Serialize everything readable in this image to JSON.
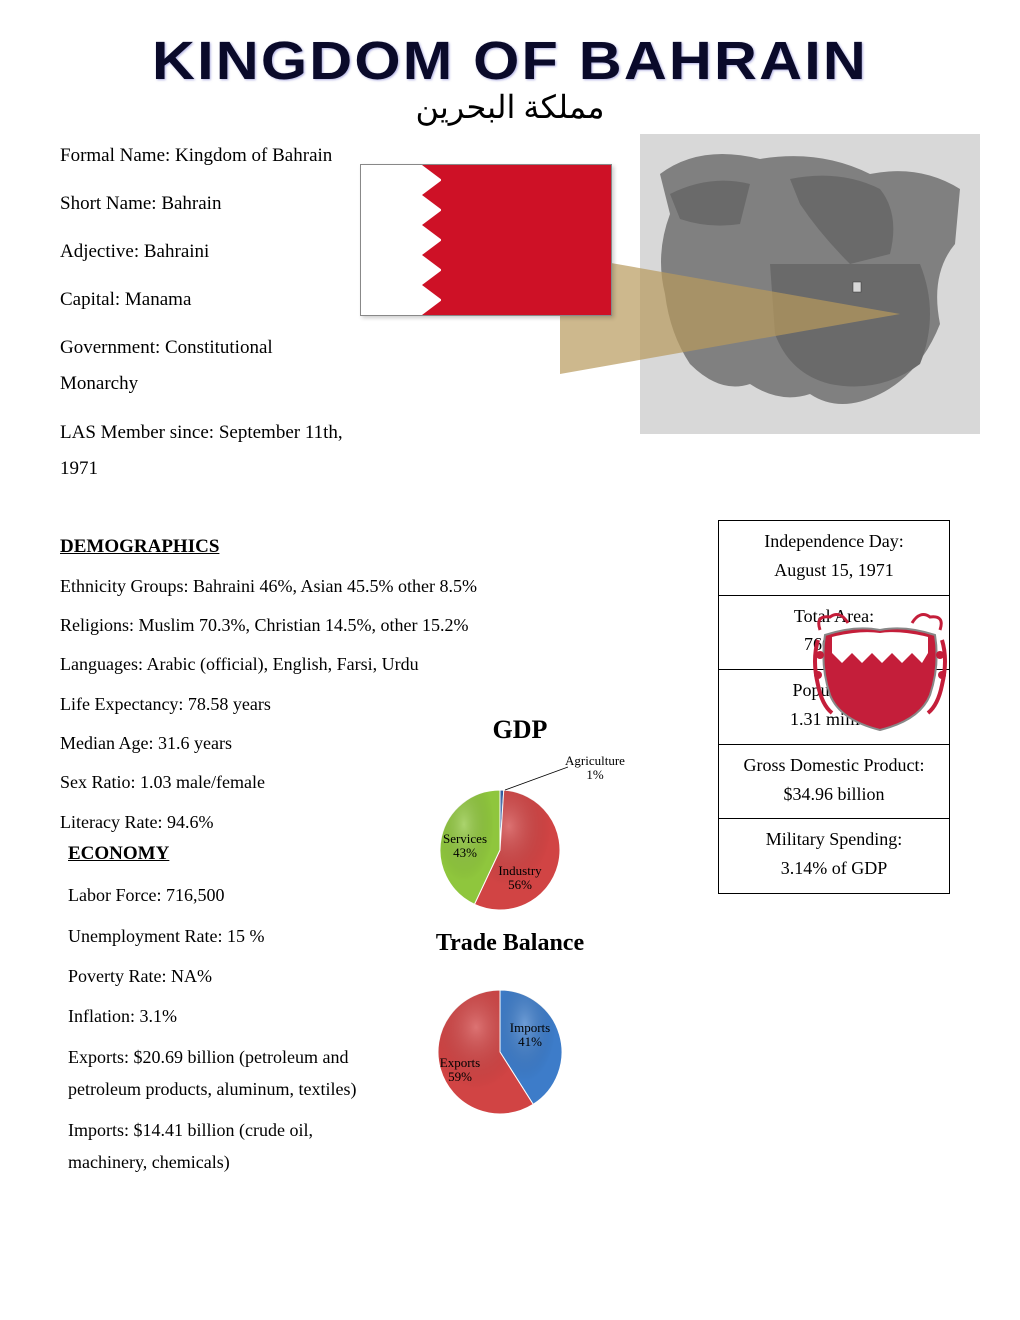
{
  "title": "KINGDOM OF BAHRAIN",
  "subtitle_ar": "مملكة البحرين",
  "facts": {
    "formal": "Formal Name: Kingdom of Bahrain",
    "short": "Short Name: Bahrain",
    "adjective": "Adjective: Bahraini",
    "capital": "Capital: Manama",
    "government": "Government: Constitutional Monarchy",
    "las": "LAS Member since:  September 11th, 1971"
  },
  "demographics": {
    "heading": "DEMOGRAPHICS",
    "ethnicity": "Ethnicity Groups:  Bahraini 46%, Asian 45.5% other 8.5%",
    "religions": "Religions: Muslim 70.3%, Christian 14.5%, other 15.2%",
    "languages": "Languages: Arabic (official), English, Farsi, Urdu",
    "life": "Life Expectancy: 78.58 years",
    "median": "Median Age: 31.6 years",
    "sex": "Sex Ratio: 1.03 male/female",
    "literacy": "Literacy Rate: 94.6%"
  },
  "economy": {
    "heading": "ECONOMY",
    "labor": "Labor Force: 716,500",
    "unemployment": "Unemployment Rate: 15 %",
    "poverty": "Poverty Rate: NA%",
    "inflation": "Inflation: 3.1%",
    "exports": "Exports: $20.69 billion (petroleum and petroleum products, aluminum, textiles)",
    "imports": "Imports: $14.41 billion (crude oil, machinery, chemicals)"
  },
  "side_table": {
    "independence_label": "Independence Day:",
    "independence_value": "August 15, 1971",
    "area_label": "Total Area:",
    "area_value": "760 km²",
    "population_label": "Population:",
    "population_value": "1.31 million",
    "gdp_label": "Gross Domestic Product:",
    "gdp_value": "$34.96 billion",
    "military_label": "Military Spending:",
    "military_value": "3.14% of GDP"
  },
  "gdp_chart": {
    "title": "GDP",
    "type": "pie",
    "slices": [
      {
        "label": "Agriculture",
        "pct": "1%",
        "value": 1,
        "color": "#2d5ca6"
      },
      {
        "label": "Industry",
        "pct": "56%",
        "value": 56,
        "color": "#d14444"
      },
      {
        "label": "Services",
        "pct": "43%",
        "value": 43,
        "color": "#8fc63d"
      }
    ],
    "radius": 60
  },
  "trade_chart": {
    "title": "Trade Balance",
    "type": "pie",
    "slices": [
      {
        "label": "Imports",
        "pct": "41%",
        "value": 41,
        "color": "#3d7cc9"
      },
      {
        "label": "Exports",
        "pct": "59%",
        "value": 59,
        "color": "#d14444"
      }
    ],
    "radius": 62
  },
  "colors": {
    "flag_red": "#ce1126",
    "map_land": "#808080",
    "map_bg": "#d8d8d8",
    "callout": "#b89a5c"
  }
}
